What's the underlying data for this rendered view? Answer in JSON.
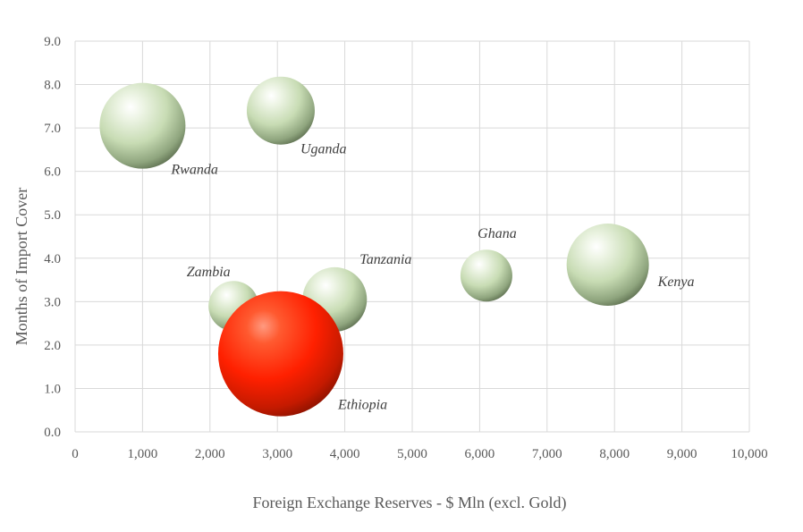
{
  "chart_data": {
    "type": "bubble",
    "xlabel": "Foreign Exchange Reserves - $ Mln (excl. Gold)",
    "ylabel": "Months of Import Cover",
    "xlim": [
      0,
      10000
    ],
    "ylim": [
      0,
      9
    ],
    "x_ticks": [
      "0",
      "1,000",
      "2,000",
      "3,000",
      "4,000",
      "5,000",
      "6,000",
      "7,000",
      "8,000",
      "9,000",
      "10,000"
    ],
    "y_ticks": [
      "0.0",
      "1.0",
      "2.0",
      "3.0",
      "4.0",
      "5.0",
      "6.0",
      "7.0",
      "8.0",
      "9.0"
    ],
    "grid": true,
    "colors": {
      "bubble": "#c8dcb4",
      "highlight": "#ff2000"
    },
    "points": [
      {
        "label": "Rwanda",
        "x": 1000,
        "y": 7.05,
        "size": 48,
        "highlight": false
      },
      {
        "label": "Uganda",
        "x": 3050,
        "y": 7.4,
        "size": 38,
        "highlight": false
      },
      {
        "label": "Zambia",
        "x": 2350,
        "y": 2.9,
        "size": 28,
        "highlight": false
      },
      {
        "label": "Tanzania",
        "x": 3850,
        "y": 3.05,
        "size": 36,
        "highlight": false
      },
      {
        "label": "Ghana",
        "x": 6100,
        "y": 3.6,
        "size": 29,
        "highlight": false
      },
      {
        "label": "Kenya",
        "x": 7900,
        "y": 3.85,
        "size": 46,
        "highlight": false
      },
      {
        "label": "Ethiopia",
        "x": 3050,
        "y": 1.8,
        "size": 70,
        "highlight": true
      }
    ]
  }
}
